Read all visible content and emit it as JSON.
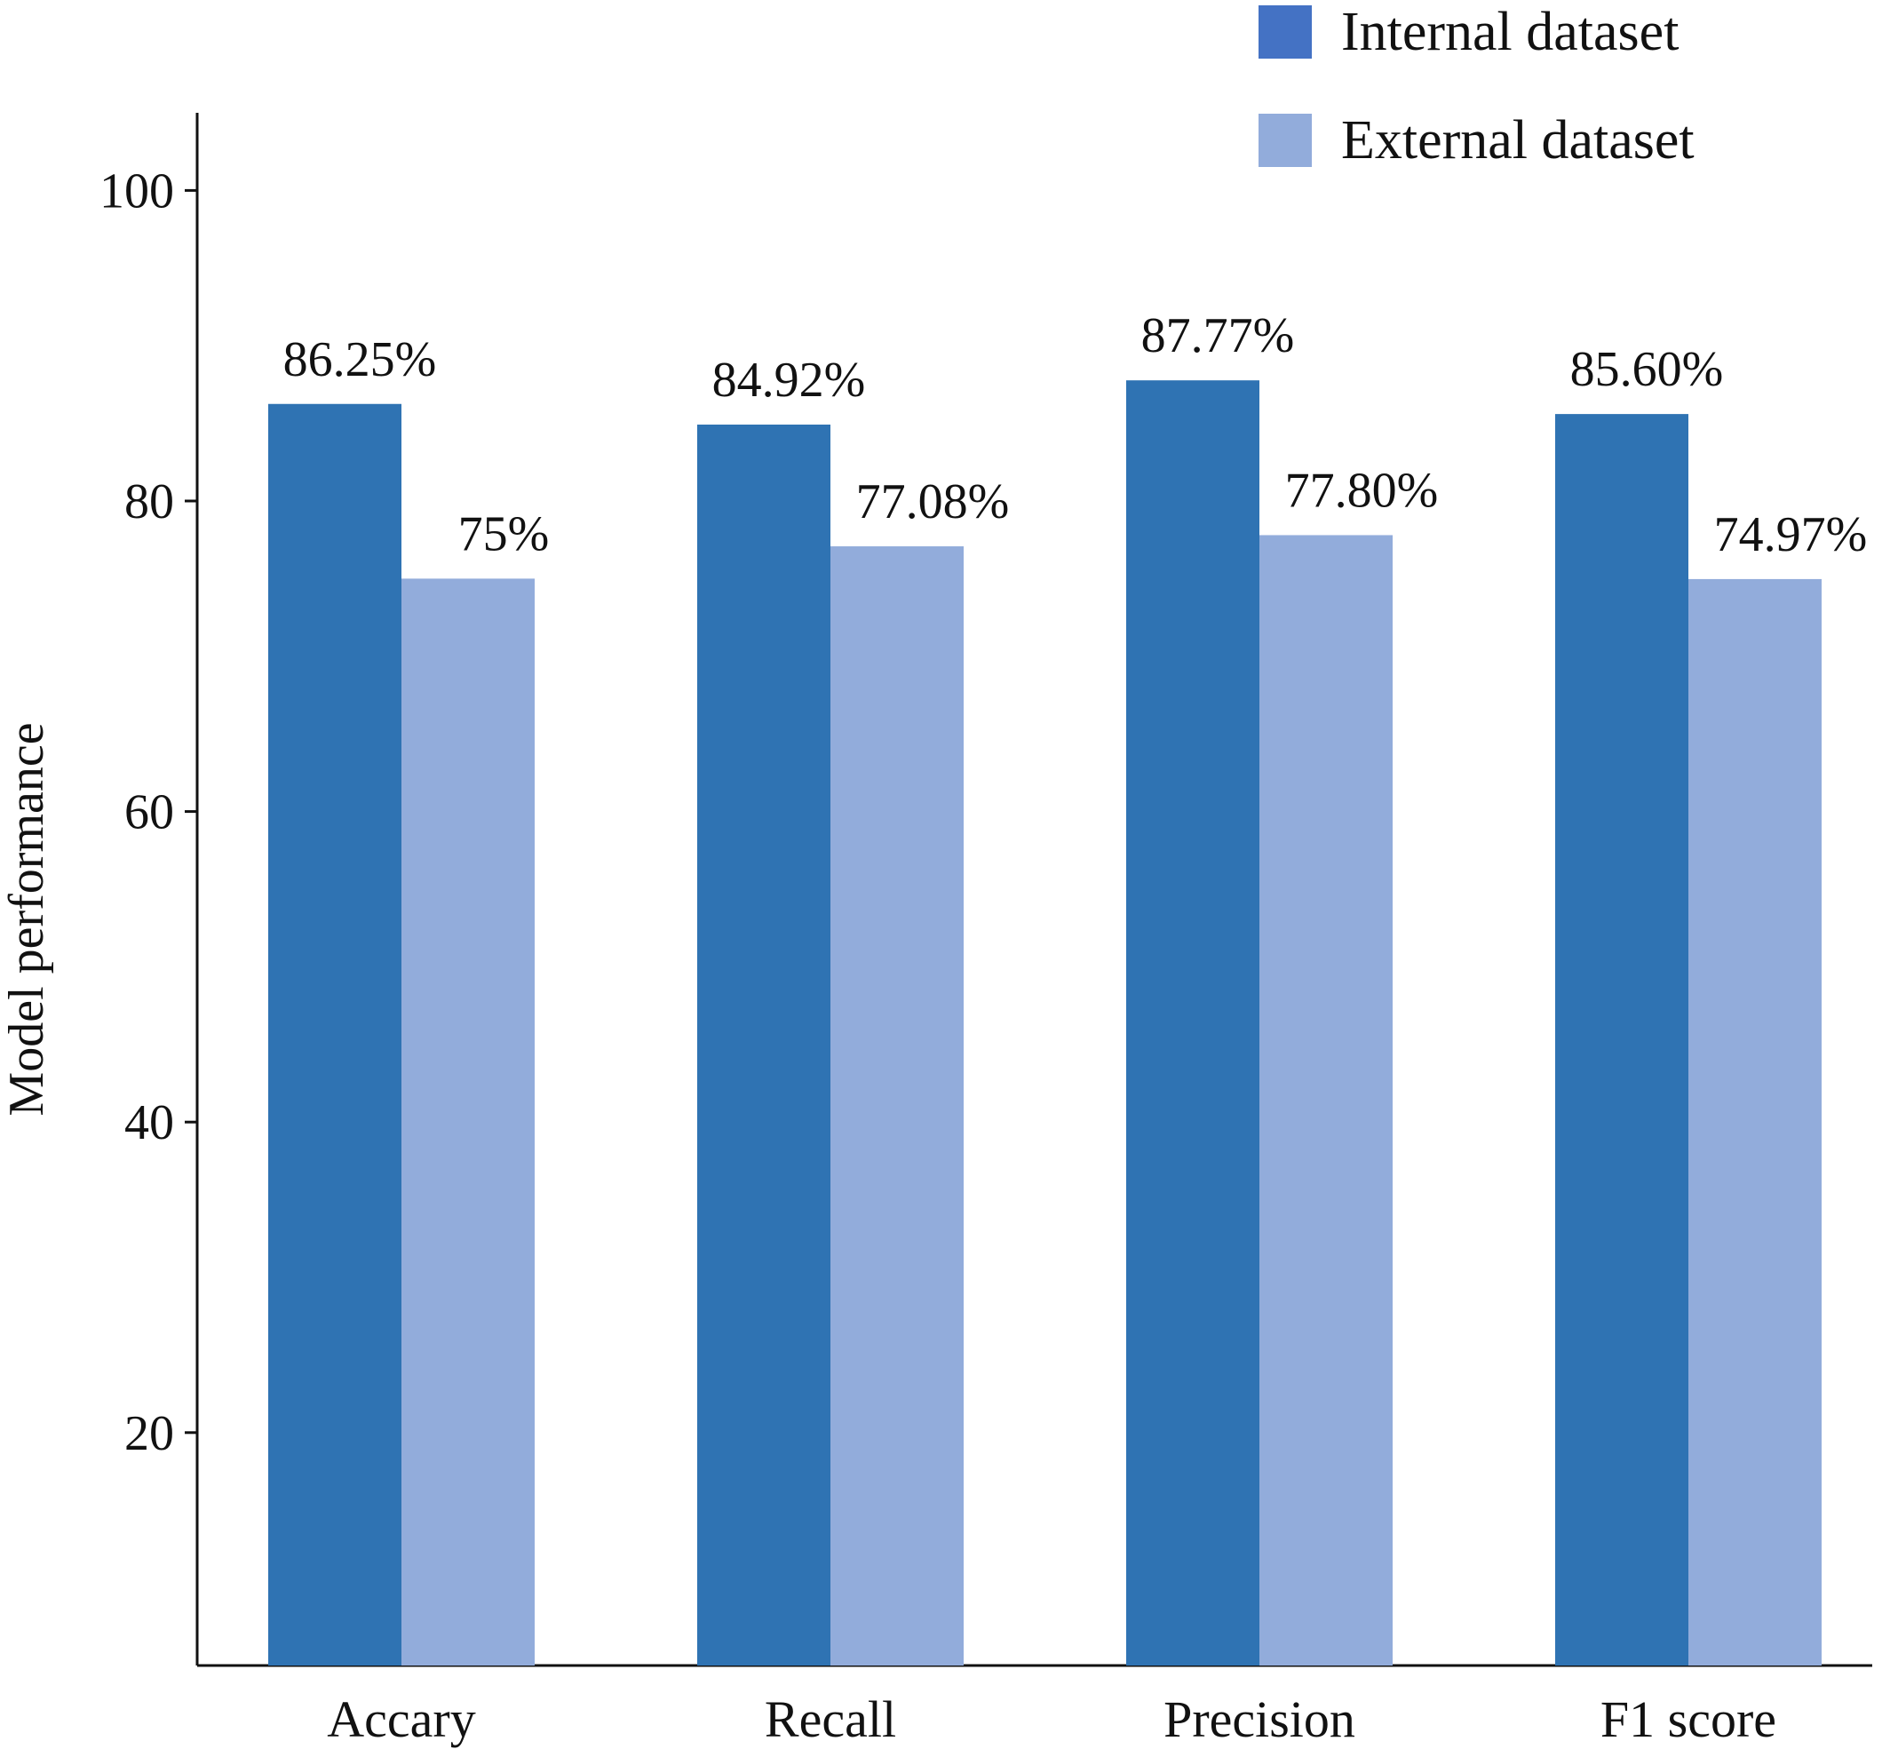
{
  "chart_data": {
    "type": "bar",
    "categories": [
      "Accary",
      "Recall",
      "Precision",
      "F1 score"
    ],
    "series": [
      {
        "name": "Internal dataset",
        "color": "#2f73b3",
        "values": [
          86.25,
          84.92,
          87.77,
          85.6
        ],
        "labels": [
          "86.25%",
          "84.92%",
          "87.77%",
          "85.60%"
        ]
      },
      {
        "name": "External dataset",
        "color": "#92acdb",
        "values": [
          75,
          77.08,
          77.8,
          74.97
        ],
        "labels": [
          "75%",
          "77.08%",
          "77.80%",
          "74.97%"
        ]
      }
    ],
    "legend_colors": [
      "#4472c4",
      "#92acdb"
    ],
    "ylabel": "Model performance",
    "xlabel": "",
    "title": "",
    "yticks": [
      20,
      40,
      60,
      80,
      100
    ],
    "ylim": [
      5,
      105
    ],
    "legend": "top-right",
    "grid": false
  }
}
